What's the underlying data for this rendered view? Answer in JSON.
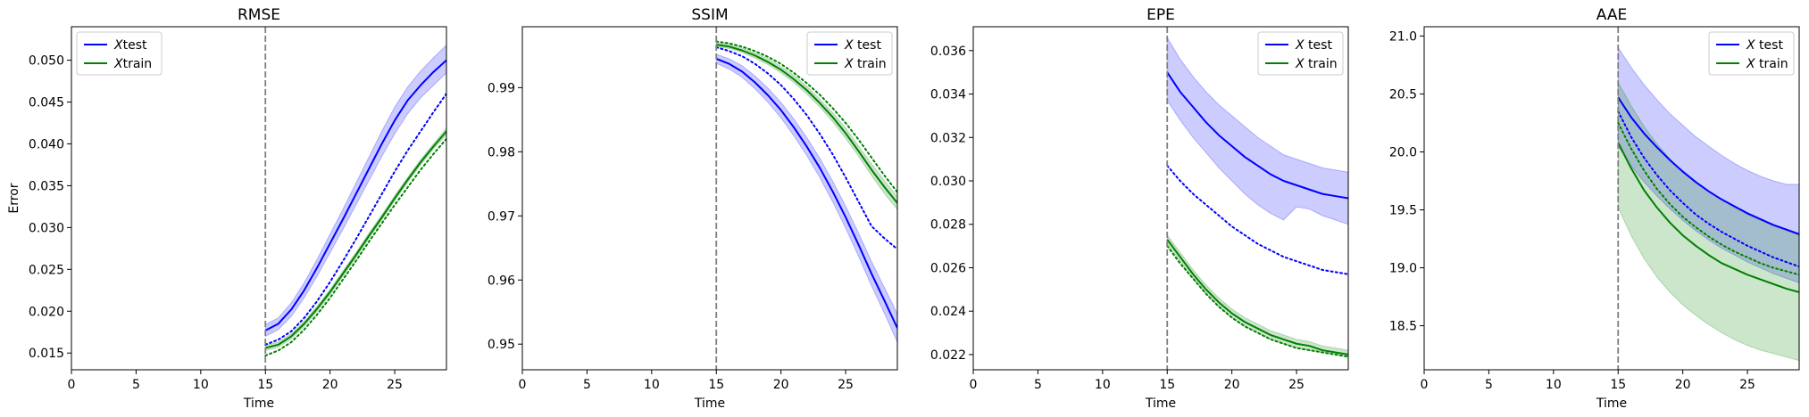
{
  "figure": {
    "colors": {
      "test": "#0000ff",
      "train": "#008000",
      "vline": "#7f7f7f"
    }
  },
  "chart_data": [
    {
      "type": "line",
      "title": "RMSE",
      "xlabel": "Time",
      "ylabel": "Error",
      "xlim": [
        0,
        29
      ],
      "ylim": [
        0.013,
        0.054
      ],
      "xticks": [
        0,
        5,
        10,
        15,
        20,
        25
      ],
      "yticks": [
        0.015,
        0.02,
        0.025,
        0.03,
        0.035,
        0.04,
        0.045,
        0.05
      ],
      "ytick_labels": [
        "0.015",
        "0.020",
        "0.025",
        "0.030",
        "0.035",
        "0.040",
        "0.045",
        "0.050"
      ],
      "vline": 15,
      "legend": "top-left",
      "legend_entries": [
        {
          "prefix": "X",
          "label": "test",
          "color": "#0000ff"
        },
        {
          "prefix": "X",
          "label": "train",
          "color": "#008000"
        }
      ],
      "x": [
        15,
        16,
        17,
        18,
        19,
        20,
        21,
        22,
        23,
        24,
        25,
        26,
        27,
        28,
        29
      ],
      "series": [
        {
          "name": "X test",
          "color": "#0000ff",
          "style": "solid",
          "values": [
            0.0177,
            0.0185,
            0.0202,
            0.0225,
            0.0252,
            0.0281,
            0.031,
            0.034,
            0.037,
            0.04,
            0.0428,
            0.0452,
            0.047,
            0.0486,
            0.05
          ],
          "lower": [
            0.017,
            0.0178,
            0.0194,
            0.0216,
            0.0242,
            0.027,
            0.0298,
            0.0327,
            0.0356,
            0.0385,
            0.0412,
            0.0436,
            0.0455,
            0.047,
            0.0485
          ],
          "upper": [
            0.0184,
            0.0192,
            0.021,
            0.0234,
            0.0262,
            0.0292,
            0.0322,
            0.0353,
            0.0384,
            0.0415,
            0.0444,
            0.0468,
            0.0487,
            0.0503,
            0.0518
          ]
        },
        {
          "name": "",
          "color": "#0000ff",
          "style": "dotted",
          "values": [
            0.016,
            0.0166,
            0.0176,
            0.0192,
            0.0212,
            0.0235,
            0.026,
            0.0286,
            0.0313,
            0.034,
            0.0367,
            0.0392,
            0.0415,
            0.0438,
            0.046
          ]
        },
        {
          "name": "X train",
          "color": "#008000",
          "style": "solid",
          "values": [
            0.0156,
            0.016,
            0.017,
            0.0185,
            0.0203,
            0.0223,
            0.0245,
            0.0267,
            0.029,
            0.0312,
            0.0335,
            0.0357,
            0.0378,
            0.0397,
            0.0415
          ],
          "lower": [
            0.0153,
            0.0157,
            0.0167,
            0.0182,
            0.02,
            0.022,
            0.0242,
            0.0264,
            0.0287,
            0.0309,
            0.0332,
            0.0354,
            0.0375,
            0.0394,
            0.0411
          ],
          "upper": [
            0.0159,
            0.0163,
            0.0173,
            0.0188,
            0.0206,
            0.0226,
            0.0248,
            0.027,
            0.0293,
            0.0315,
            0.0338,
            0.036,
            0.0381,
            0.04,
            0.0419
          ]
        },
        {
          "name": "",
          "color": "#008000",
          "style": "dotted",
          "values": [
            0.0147,
            0.0153,
            0.0163,
            0.0178,
            0.0196,
            0.0216,
            0.0238,
            0.026,
            0.0283,
            0.0305,
            0.0327,
            0.0348,
            0.0369,
            0.0388,
            0.0406
          ]
        }
      ]
    },
    {
      "type": "line",
      "title": "SSIM",
      "xlabel": "Time",
      "ylabel": "",
      "xlim": [
        0,
        29
      ],
      "ylim": [
        0.946,
        0.9995
      ],
      "xticks": [
        0,
        5,
        10,
        15,
        20,
        25
      ],
      "yticks": [
        0.95,
        0.96,
        0.97,
        0.98,
        0.99
      ],
      "ytick_labels": [
        "0.95",
        "0.96",
        "0.97",
        "0.98",
        "0.99"
      ],
      "vline": 15,
      "legend": "top-right",
      "legend_entries": [
        {
          "prefix": "X",
          "label": " test",
          "color": "#0000ff"
        },
        {
          "prefix": "X",
          "label": " train",
          "color": "#008000"
        }
      ],
      "x": [
        15,
        16,
        17,
        18,
        19,
        20,
        21,
        22,
        23,
        24,
        25,
        26,
        27,
        28,
        29
      ],
      "series": [
        {
          "name": "X test",
          "color": "#0000ff",
          "style": "solid",
          "values": [
            0.9945,
            0.9937,
            0.9925,
            0.9908,
            0.9888,
            0.9865,
            0.9838,
            0.9808,
            0.9775,
            0.9738,
            0.9698,
            0.9655,
            0.961,
            0.9568,
            0.9525
          ],
          "lower": [
            0.9938,
            0.9929,
            0.9916,
            0.9898,
            0.9877,
            0.9853,
            0.9825,
            0.9794,
            0.976,
            0.9722,
            0.9681,
            0.9637,
            0.9591,
            0.9548,
            0.9503
          ],
          "upper": [
            0.9952,
            0.9945,
            0.9934,
            0.9918,
            0.9899,
            0.9877,
            0.9851,
            0.9822,
            0.979,
            0.9754,
            0.9715,
            0.9673,
            0.9629,
            0.9588,
            0.9547
          ]
        },
        {
          "name": "",
          "color": "#0000ff",
          "style": "dotted",
          "values": [
            0.9963,
            0.9957,
            0.9949,
            0.9937,
            0.9922,
            0.9904,
            0.9882,
            0.9857,
            0.9828,
            0.9796,
            0.976,
            0.9722,
            0.9684,
            0.9665,
            0.9648
          ]
        },
        {
          "name": "X train",
          "color": "#008000",
          "style": "solid",
          "values": [
            0.9967,
            0.9964,
            0.9958,
            0.995,
            0.994,
            0.9928,
            0.9913,
            0.9896,
            0.9876,
            0.9854,
            0.9829,
            0.9801,
            0.9772,
            0.9745,
            0.972
          ],
          "lower": [
            0.9964,
            0.9961,
            0.9955,
            0.9946,
            0.9936,
            0.9923,
            0.9908,
            0.989,
            0.987,
            0.9847,
            0.9821,
            0.9793,
            0.9763,
            0.9735,
            0.971
          ],
          "upper": [
            0.997,
            0.9967,
            0.9962,
            0.9954,
            0.9945,
            0.9933,
            0.9919,
            0.9902,
            0.9882,
            0.9861,
            0.9837,
            0.9809,
            0.9781,
            0.9755,
            0.973
          ]
        },
        {
          "name": "",
          "color": "#008000",
          "style": "dotted",
          "values": [
            0.9972,
            0.9969,
            0.9964,
            0.9957,
            0.9948,
            0.9937,
            0.9923,
            0.9907,
            0.9889,
            0.9868,
            0.9845,
            0.9819,
            0.9791,
            0.9763,
            0.9737
          ]
        }
      ]
    },
    {
      "type": "line",
      "title": "EPE",
      "xlabel": "Time",
      "ylabel": "",
      "xlim": [
        0,
        29
      ],
      "ylim": [
        0.0213,
        0.0371
      ],
      "xticks": [
        0,
        5,
        10,
        15,
        20,
        25
      ],
      "yticks": [
        0.022,
        0.024,
        0.026,
        0.028,
        0.03,
        0.032,
        0.034,
        0.036
      ],
      "ytick_labels": [
        "0.022",
        "0.024",
        "0.026",
        "0.028",
        "0.030",
        "0.032",
        "0.034",
        "0.036"
      ],
      "vline": 15,
      "legend": "top-right",
      "legend_entries": [
        {
          "prefix": "X",
          "label": " test",
          "color": "#0000ff"
        },
        {
          "prefix": "X",
          "label": " train",
          "color": "#008000"
        }
      ],
      "x": [
        15,
        16,
        17,
        18,
        19,
        20,
        21,
        22,
        23,
        24,
        25,
        26,
        27,
        28,
        29
      ],
      "series": [
        {
          "name": "X test",
          "color": "#0000ff",
          "style": "solid",
          "values": [
            0.035,
            0.0341,
            0.0334,
            0.0327,
            0.0321,
            0.0316,
            0.0311,
            0.0307,
            0.0303,
            0.03,
            0.0298,
            0.0296,
            0.0294,
            0.0293,
            0.0292
          ],
          "lower": [
            0.0337,
            0.0328,
            0.032,
            0.0313,
            0.0306,
            0.03,
            0.0294,
            0.0289,
            0.0285,
            0.0282,
            0.0288,
            0.0287,
            0.0284,
            0.0282,
            0.028
          ],
          "upper": [
            0.0366,
            0.0356,
            0.0348,
            0.0341,
            0.0335,
            0.033,
            0.0325,
            0.032,
            0.0316,
            0.0312,
            0.031,
            0.0308,
            0.0306,
            0.0305,
            0.0304
          ]
        },
        {
          "name": "",
          "color": "#0000ff",
          "style": "dotted",
          "values": [
            0.0307,
            0.03,
            0.0294,
            0.0289,
            0.0284,
            0.0279,
            0.0275,
            0.0271,
            0.0268,
            0.0265,
            0.0263,
            0.0261,
            0.0259,
            0.0258,
            0.0257
          ]
        },
        {
          "name": "X train",
          "color": "#008000",
          "style": "solid",
          "values": [
            0.0273,
            0.0265,
            0.0257,
            0.025,
            0.0244,
            0.0239,
            0.0235,
            0.0232,
            0.0229,
            0.0227,
            0.0225,
            0.0224,
            0.0222,
            0.0221,
            0.022
          ],
          "lower": [
            0.0271,
            0.0263,
            0.0255,
            0.0248,
            0.0242,
            0.0237,
            0.0233,
            0.023,
            0.0227,
            0.0225,
            0.0223,
            0.0222,
            0.0221,
            0.022,
            0.0219
          ],
          "upper": [
            0.0275,
            0.0267,
            0.0259,
            0.0252,
            0.0246,
            0.0241,
            0.0237,
            0.0234,
            0.0231,
            0.0229,
            0.0227,
            0.0226,
            0.0224,
            0.0223,
            0.0222
          ]
        },
        {
          "name": "",
          "color": "#008000",
          "style": "dotted",
          "values": [
            0.027,
            0.0262,
            0.0255,
            0.0248,
            0.0242,
            0.0237,
            0.0233,
            0.023,
            0.0227,
            0.0225,
            0.0223,
            0.0222,
            0.0221,
            0.022,
            0.0219
          ]
        }
      ]
    },
    {
      "type": "line",
      "title": "AAE",
      "xlabel": "Time",
      "ylabel": "",
      "xlim": [
        0,
        29
      ],
      "ylim": [
        18.12,
        21.08
      ],
      "xticks": [
        0,
        5,
        10,
        15,
        20,
        25
      ],
      "yticks": [
        18.5,
        19.0,
        19.5,
        20.0,
        20.5,
        21.0
      ],
      "ytick_labels": [
        "18.5",
        "19.0",
        "19.5",
        "20.0",
        "20.5",
        "21.0"
      ],
      "vline": 15,
      "legend": "top-right",
      "legend_entries": [
        {
          "prefix": "X",
          "label": " test",
          "color": "#0000ff"
        },
        {
          "prefix": "X",
          "label": " train",
          "color": "#008000"
        }
      ],
      "x": [
        15,
        16,
        17,
        18,
        19,
        20,
        21,
        22,
        23,
        24,
        25,
        26,
        27,
        28,
        29
      ],
      "series": [
        {
          "name": "X test",
          "color": "#0000ff",
          "style": "solid",
          "values": [
            20.47,
            20.3,
            20.16,
            20.04,
            19.93,
            19.83,
            19.74,
            19.66,
            19.59,
            19.53,
            19.47,
            19.42,
            19.37,
            19.33,
            19.29
          ],
          "lower": [
            20.05,
            19.88,
            19.74,
            19.62,
            19.51,
            19.41,
            19.32,
            19.24,
            19.17,
            19.11,
            19.05,
            19.0,
            18.95,
            18.91,
            18.87
          ],
          "upper": [
            20.9,
            20.73,
            20.58,
            20.45,
            20.33,
            20.23,
            20.13,
            20.05,
            19.97,
            19.9,
            19.84,
            19.79,
            19.75,
            19.72,
            19.72
          ]
        },
        {
          "name": "",
          "color": "#0000ff",
          "style": "dotted",
          "values": [
            20.35,
            20.13,
            19.95,
            19.8,
            19.67,
            19.56,
            19.46,
            19.38,
            19.31,
            19.25,
            19.19,
            19.14,
            19.09,
            19.05,
            19.01
          ]
        },
        {
          "name": "X train",
          "color": "#008000",
          "style": "solid",
          "values": [
            20.08,
            19.86,
            19.67,
            19.52,
            19.39,
            19.28,
            19.19,
            19.11,
            19.04,
            18.99,
            18.94,
            18.9,
            18.86,
            18.82,
            18.79
          ],
          "lower": [
            19.52,
            19.28,
            19.08,
            18.92,
            18.79,
            18.68,
            18.59,
            18.51,
            18.44,
            18.38,
            18.33,
            18.29,
            18.26,
            18.23,
            18.2
          ],
          "upper": [
            20.6,
            20.4,
            20.22,
            20.07,
            19.94,
            19.83,
            19.74,
            19.66,
            19.59,
            19.52,
            19.46,
            19.41,
            19.36,
            19.32,
            19.28
          ]
        },
        {
          "name": "",
          "color": "#008000",
          "style": "dotted",
          "values": [
            20.25,
            20.03,
            19.84,
            19.68,
            19.55,
            19.44,
            19.35,
            19.27,
            19.2,
            19.14,
            19.09,
            19.04,
            19.0,
            18.97,
            18.94
          ]
        }
      ]
    }
  ]
}
